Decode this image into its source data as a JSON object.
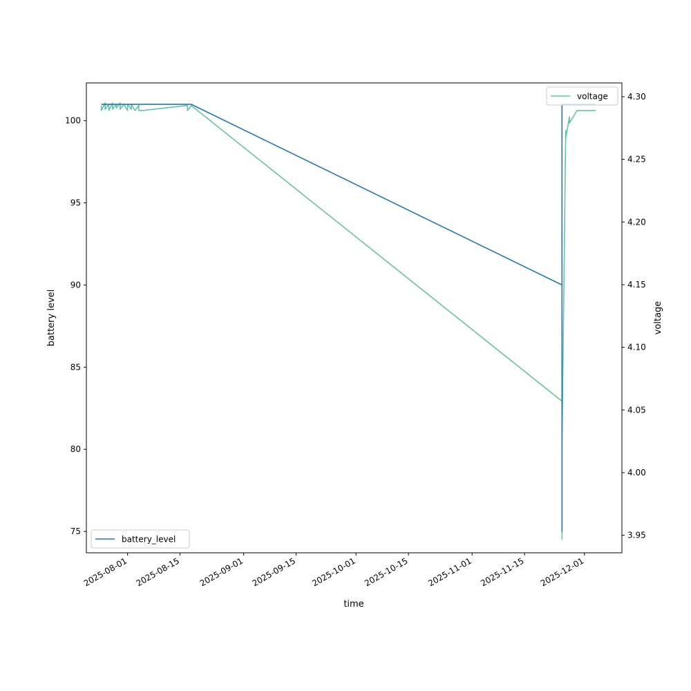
{
  "chart_data": {
    "type": "line",
    "xlabel": "time",
    "ylabel": "battery level",
    "y2label": "voltage",
    "x_ticks": [
      "2025-08-01",
      "2025-08-15",
      "2025-09-01",
      "2025-09-15",
      "2025-10-01",
      "2025-10-15",
      "2025-11-01",
      "2025-11-15",
      "2025-12-01"
    ],
    "y_ticks": [
      75,
      80,
      85,
      90,
      95,
      100
    ],
    "y2_ticks": [
      "3.95",
      "4.00",
      "4.05",
      "4.10",
      "4.15",
      "4.20",
      "4.25",
      "4.30"
    ],
    "xlim": [
      "2025-07-21",
      "2025-12-11"
    ],
    "ylim": [
      73.7,
      102.3
    ],
    "y2lim": [
      3.936,
      4.311
    ],
    "grid": false,
    "series": [
      {
        "name": "battery_level",
        "axis": "left",
        "color": "#1f77b4",
        "legend_position": "lower left",
        "points": [
          [
            "2025-07-25",
            101
          ],
          [
            "2025-08-04",
            101
          ],
          [
            "2025-08-18",
            101
          ],
          [
            "2025-11-25",
            90
          ],
          [
            "2025-11-25",
            75
          ],
          [
            "2025-11-25",
            101
          ],
          [
            "2025-12-04",
            101
          ]
        ]
      },
      {
        "name": "voltage",
        "axis": "right",
        "color": "#66c2a5",
        "legend_position": "upper right",
        "points": [
          [
            "2025-07-25",
            4.293
          ],
          [
            "2025-07-25",
            4.289
          ],
          [
            "2025-07-26",
            4.295
          ],
          [
            "2025-07-26",
            4.29
          ],
          [
            "2025-07-27",
            4.294
          ],
          [
            "2025-07-27",
            4.289
          ],
          [
            "2025-07-28",
            4.295
          ],
          [
            "2025-07-28",
            4.29
          ],
          [
            "2025-07-29",
            4.294
          ],
          [
            "2025-07-29",
            4.291
          ],
          [
            "2025-07-30",
            4.295
          ],
          [
            "2025-07-30",
            4.29
          ],
          [
            "2025-07-31",
            4.294
          ],
          [
            "2025-08-01",
            4.289
          ],
          [
            "2025-08-01",
            4.294
          ],
          [
            "2025-08-02",
            4.29
          ],
          [
            "2025-08-02",
            4.294
          ],
          [
            "2025-08-03",
            4.289
          ],
          [
            "2025-08-04",
            4.293
          ],
          [
            "2025-08-04",
            4.289
          ],
          [
            "2025-08-05",
            4.289
          ],
          [
            "2025-08-17",
            4.293
          ],
          [
            "2025-08-17",
            4.289
          ],
          [
            "2025-08-18",
            4.293
          ],
          [
            "2025-11-25",
            4.057
          ],
          [
            "2025-11-25",
            3.947
          ],
          [
            "2025-11-25",
            4.02
          ],
          [
            "2025-11-26",
            4.273
          ],
          [
            "2025-11-26",
            4.267
          ],
          [
            "2025-11-27",
            4.284
          ],
          [
            "2025-11-27",
            4.279
          ],
          [
            "2025-11-29",
            4.289
          ],
          [
            "2025-12-04",
            4.289
          ]
        ]
      }
    ]
  }
}
